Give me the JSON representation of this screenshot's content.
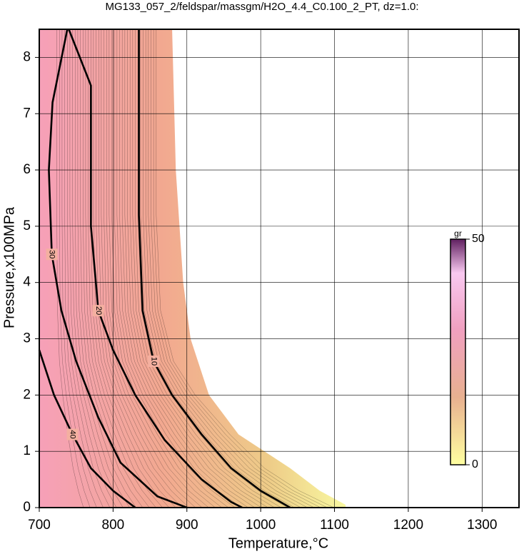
{
  "chart_data": {
    "type": "contour",
    "title": "MG133_057_2/feldspar/massgm/H2O_4.4_C0.100_2_PT, dz=1.0:",
    "x_label": "Temperature,°C",
    "y_label": "Pressure,x100MPa",
    "xlim": [
      700,
      1350
    ],
    "ylim": [
      0,
      8.5
    ],
    "xticks": [
      700,
      800,
      900,
      1000,
      1100,
      1200,
      1300
    ],
    "yticks": [
      0,
      1,
      2,
      3,
      4,
      5,
      6,
      7,
      8
    ],
    "grid": true,
    "region": {
      "x": [
        700,
        700,
        880,
        885,
        895,
        905,
        930,
        970,
        1040,
        1080,
        1115,
        1115
      ],
      "y": [
        0,
        8.5,
        8.5,
        6,
        4,
        3,
        2,
        1.3,
        0.7,
        0.3,
        0.05,
        0
      ]
    },
    "contours": [
      {
        "level": 10,
        "x": [
          835,
          835,
          840,
          855,
          880,
          920,
          960,
          1000,
          1040
        ],
        "y": [
          8.5,
          5.2,
          3.5,
          2.6,
          2.0,
          1.3,
          0.7,
          0.3,
          0
        ]
      },
      {
        "level": 20,
        "x": [
          740,
          770,
          770,
          780,
          800,
          830,
          870,
          920,
          960,
          975
        ],
        "y": [
          8.5,
          7.5,
          5,
          3.5,
          2.8,
          2.0,
          1.2,
          0.5,
          0.1,
          0
        ]
      },
      {
        "level": 30,
        "x": [
          738,
          718,
          713,
          717,
          730,
          750,
          780,
          810,
          860,
          900
        ],
        "y": [
          8.5,
          7.2,
          6,
          4.5,
          3.5,
          2.6,
          1.6,
          0.8,
          0.2,
          0
        ]
      },
      {
        "level": 40,
        "x": [
          700,
          720,
          745,
          770,
          800,
          830
        ],
        "y": [
          2.8,
          2.0,
          1.3,
          0.7,
          0.3,
          0
        ]
      }
    ],
    "colorbar": {
      "label": "gr",
      "ticks": [
        0,
        50
      ]
    }
  }
}
